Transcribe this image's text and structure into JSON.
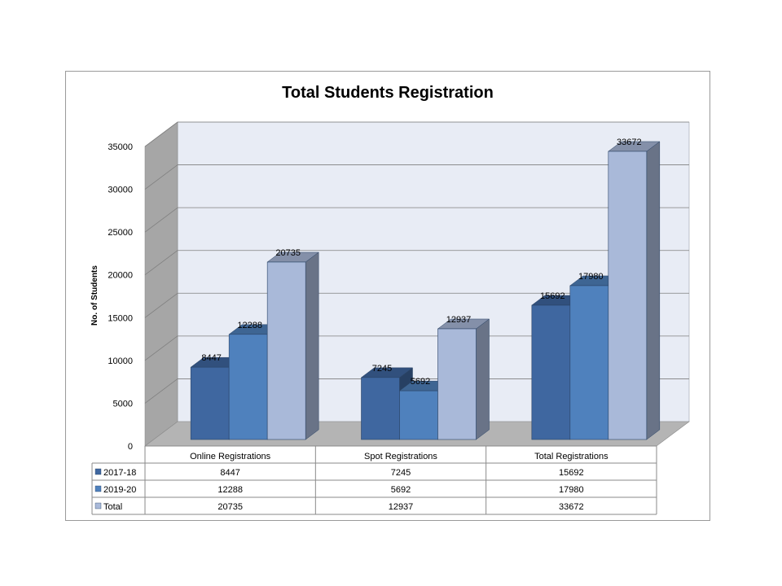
{
  "chart_data": {
    "type": "bar",
    "title": "Total Students Registration",
    "ylabel": "No. of Students",
    "xlabel": "",
    "ylim": [
      0,
      35000
    ],
    "yticks": [
      0,
      5000,
      10000,
      15000,
      20000,
      25000,
      30000,
      35000
    ],
    "categories": [
      "Online Registrations",
      "Spot Registrations",
      "Total Registrations"
    ],
    "series": [
      {
        "name": "2017-18",
        "values": [
          8447,
          7245,
          15692
        ],
        "color": "#3f67a0"
      },
      {
        "name": "2019-20",
        "values": [
          12288,
          5692,
          17980
        ],
        "color": "#4f81bd"
      },
      {
        "name": "Total",
        "values": [
          20735,
          12937,
          33672
        ],
        "color": "#a9b9d9"
      }
    ],
    "grid": true,
    "legend": "data-table",
    "style": "3d-clustered-column"
  }
}
